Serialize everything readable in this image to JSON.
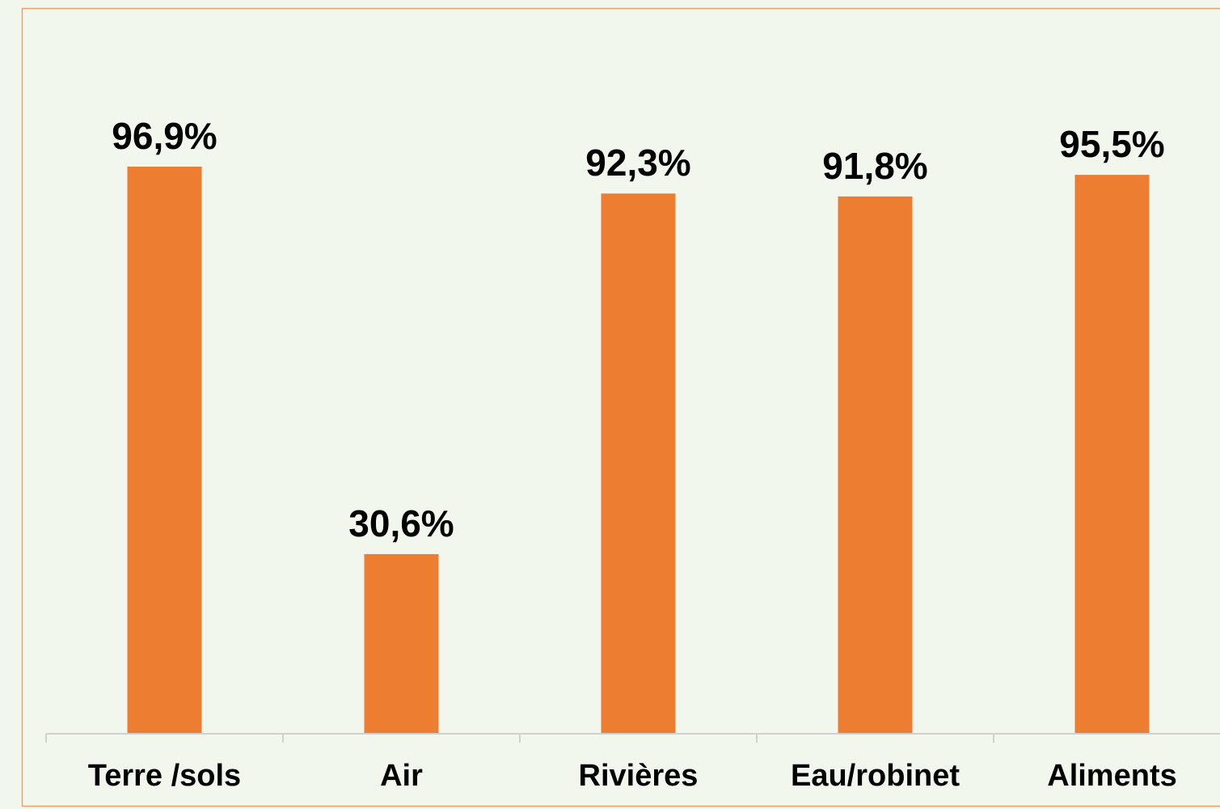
{
  "chart_data": {
    "type": "bar",
    "categories": [
      "Terre /sols",
      "Air",
      "Rivières",
      "Eau/robinet",
      "Aliments"
    ],
    "values": [
      96.9,
      30.6,
      92.3,
      91.8,
      95.5
    ],
    "value_labels": [
      "96,9%",
      "30,6%",
      "92,3%",
      "91,8%",
      "95,5%"
    ],
    "color": "#ed7d31"
  }
}
